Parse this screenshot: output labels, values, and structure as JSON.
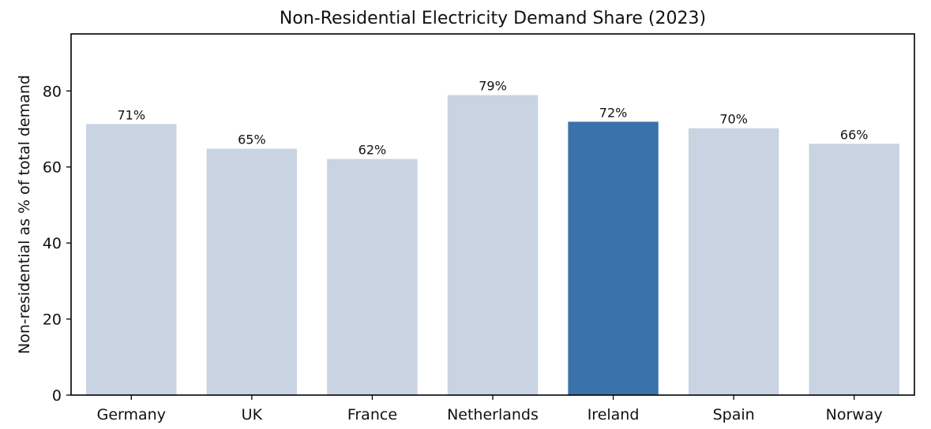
{
  "chart_data": {
    "type": "bar",
    "title": "Non-Residential Electricity Demand Share (2023)",
    "xlabel": "",
    "ylabel": "Non-residential as % of total demand",
    "categories": [
      "Germany",
      "UK",
      "France",
      "Netherlands",
      "Ireland",
      "Spain",
      "Norway"
    ],
    "values": [
      71.3,
      64.8,
      62.1,
      78.9,
      71.9,
      70.2,
      66.1
    ],
    "data_labels": [
      "71%",
      "65%",
      "62%",
      "79%",
      "72%",
      "70%",
      "66%"
    ],
    "highlight": "Ireland",
    "ylim": [
      0,
      95
    ],
    "yticks": [
      0,
      20,
      40,
      60,
      80
    ],
    "grid": false,
    "colors": {
      "default": "#c9d3e2",
      "highlight": "#3a73ab",
      "text": "#111111",
      "axis": "#000000"
    }
  }
}
